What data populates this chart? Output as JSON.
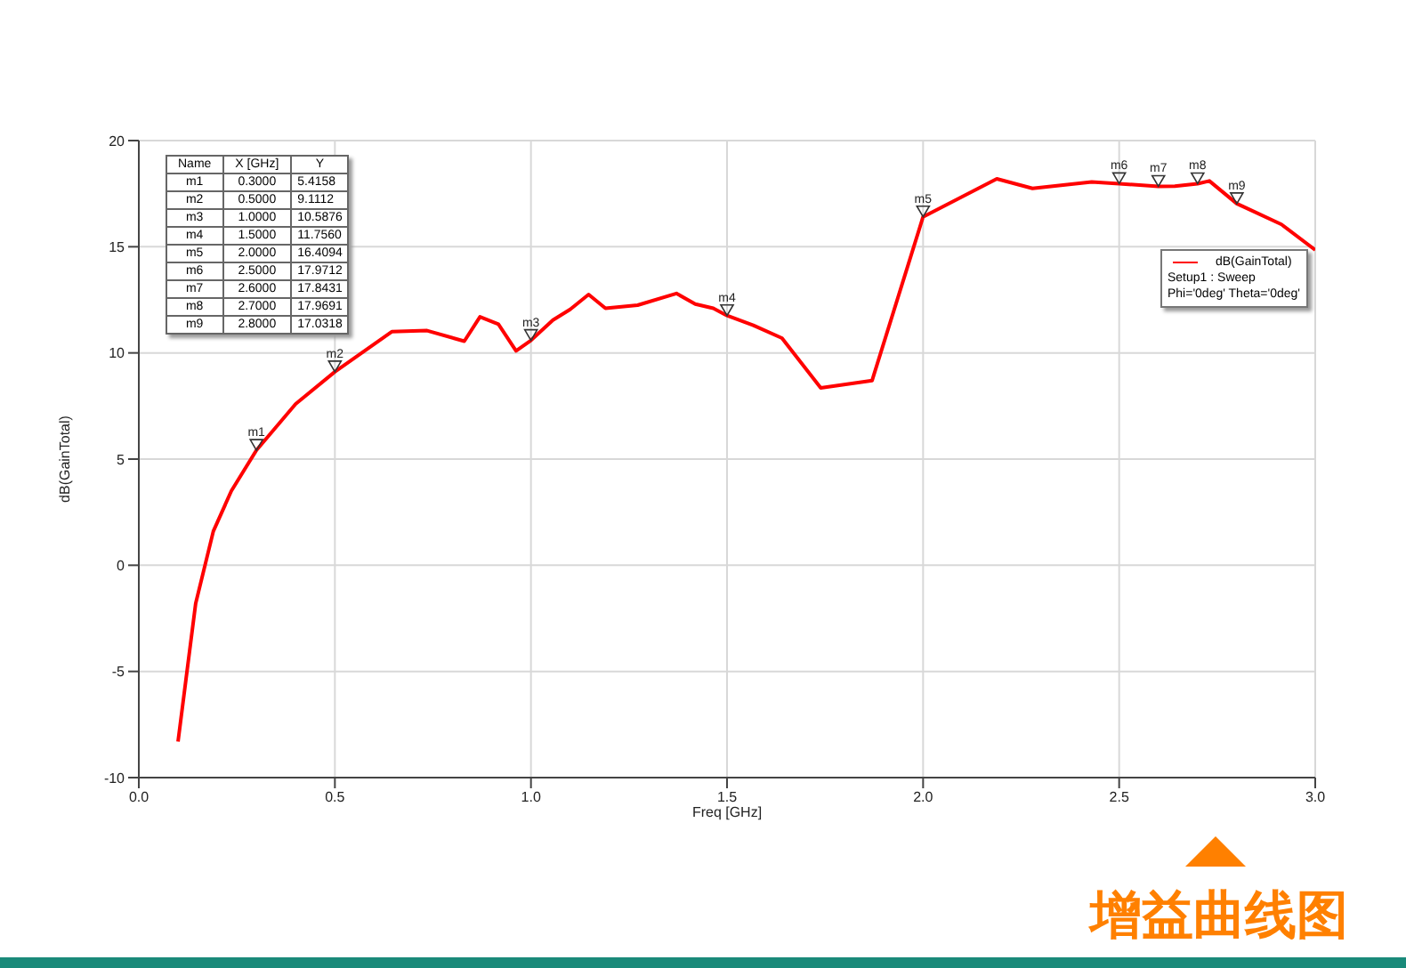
{
  "chart_data": {
    "type": "line",
    "xlabel": "Freq [GHz]",
    "ylabel": "dB(GainTotal)",
    "xlim": [
      0,
      3
    ],
    "xticks": [
      {
        "value": 0,
        "label": "0.0"
      },
      0.5,
      {
        "value": 1,
        "label": "1.0"
      },
      1.5,
      {
        "value": 2,
        "label": "2.0"
      },
      2.5,
      {
        "value": 3,
        "label": "3.0"
      }
    ],
    "ylim": [
      -10,
      20
    ],
    "yticks": [
      -10,
      -5,
      0,
      5,
      10,
      15,
      20
    ],
    "grid": true,
    "legend": "right",
    "marker": "none",
    "line_style": "solid",
    "series": [
      {
        "name": "dB(GainTotal)",
        "color": "#ff0000",
        "x": [
          0.1,
          0.145,
          0.19,
          0.236,
          0.3,
          0.4,
          0.5,
          0.645,
          0.735,
          0.83,
          0.87,
          0.917,
          0.962,
          1.0,
          1.056,
          1.1,
          1.147,
          1.19,
          1.272,
          1.371,
          1.419,
          1.465,
          1.5,
          1.567,
          1.64,
          1.739,
          1.87,
          2.0,
          2.188,
          2.279,
          2.43,
          2.5,
          2.6,
          2.642,
          2.7,
          2.73,
          2.8,
          2.827,
          2.914,
          3.0
        ],
        "values": [
          -8.3,
          -1.8,
          1.6,
          3.5,
          5.42,
          7.6,
          9.11,
          11.0,
          11.05,
          10.55,
          11.7,
          11.35,
          10.1,
          10.59,
          11.55,
          12.05,
          12.75,
          12.1,
          12.25,
          12.8,
          12.3,
          12.1,
          11.76,
          11.3,
          10.7,
          8.35,
          8.7,
          16.41,
          18.2,
          17.75,
          18.05,
          17.97,
          17.84,
          17.85,
          17.97,
          18.1,
          17.03,
          16.8,
          16.05,
          14.85
        ]
      }
    ],
    "annotations": [
      "Name",
      "X [GHz]",
      "Y",
      "Setup1 : Sweep",
      "Phi='0deg' Theta='0deg'",
      "增益曲线图",
      "0.3000",
      "5.4158",
      "0.5000",
      "9.1112",
      "1.0000",
      "10.5876",
      "1.5000",
      "11.7560",
      "2.0000",
      "16.4094",
      "2.5000",
      "17.9712",
      "2.6000",
      "17.8431",
      "2.7000",
      "17.9691",
      "2.8000",
      "17.0318",
      {
        "text": "m1",
        "x": 0.3,
        "y": 5.4158
      },
      {
        "text": "m2",
        "x": 0.5,
        "y": 9.1112
      },
      {
        "text": "m3",
        "x": 1.0,
        "y": 10.5876
      },
      {
        "text": "m4",
        "x": 1.5,
        "y": 11.756
      },
      {
        "text": "m5",
        "x": 2.0,
        "y": 16.4094
      },
      {
        "text": "m6",
        "x": 2.5,
        "y": 17.9712
      },
      {
        "text": "m7",
        "x": 2.6,
        "y": 17.8431
      },
      {
        "text": "m8",
        "x": 2.7,
        "y": 17.9691
      },
      {
        "text": "m9",
        "x": 2.8,
        "y": 17.0318
      }
    ]
  }
}
